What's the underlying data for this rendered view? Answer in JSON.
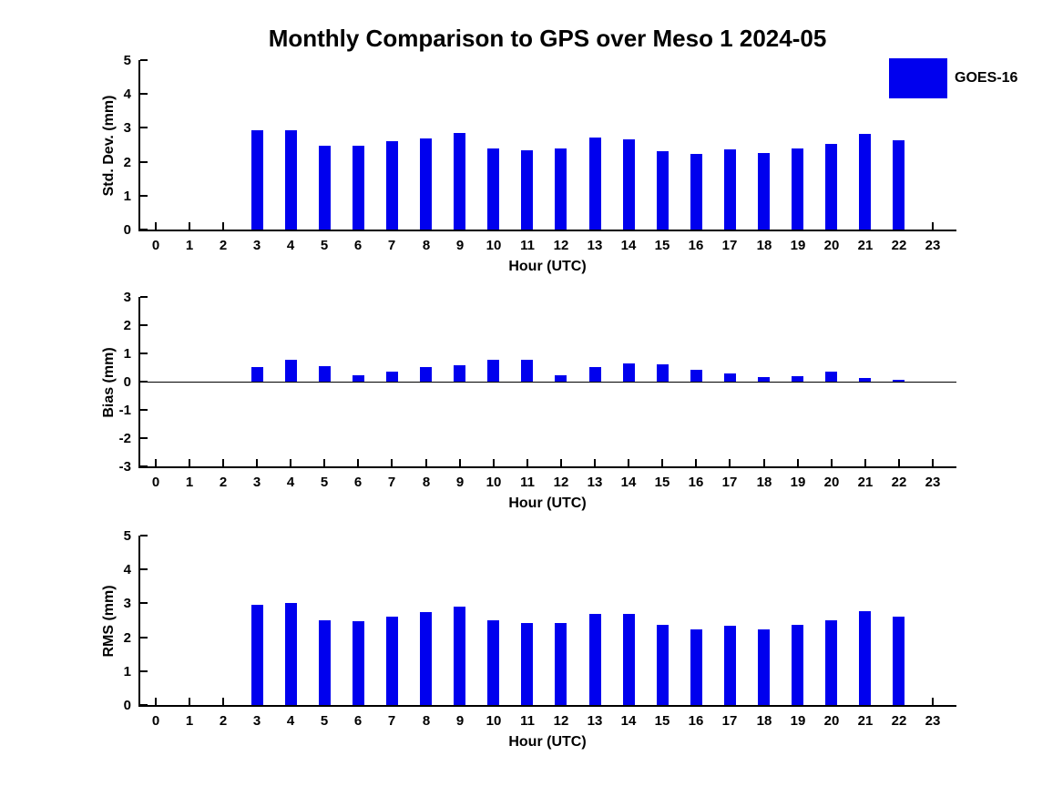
{
  "figure": {
    "title": "Monthly Comparison to GPS over Meso 1 2024-05",
    "legend": {
      "label": "GOES-16",
      "swatch_color": "#0000ee",
      "position": "top-right-outside"
    }
  },
  "chart_data": [
    {
      "type": "bar",
      "id": "std-dev",
      "title": "",
      "ylabel": "Std. Dev. (mm)",
      "xlabel": "Hour (UTC)",
      "ylim": [
        0,
        5
      ],
      "yticks": [
        0,
        1,
        2,
        3,
        4,
        5
      ],
      "xlim": [
        -0.45,
        23.7
      ],
      "xticks": [
        0,
        1,
        2,
        3,
        4,
        5,
        6,
        7,
        8,
        9,
        10,
        11,
        12,
        13,
        14,
        15,
        16,
        17,
        18,
        19,
        20,
        21,
        22,
        23
      ],
      "zero_line": false,
      "grid": false,
      "bar_color": "#0000ee",
      "series": [
        {
          "name": "GOES-16",
          "x": [
            3,
            4,
            5,
            6,
            7,
            8,
            9,
            10,
            11,
            12,
            13,
            14,
            15,
            16,
            17,
            18,
            19,
            20,
            21,
            22
          ],
          "values": [
            2.93,
            2.93,
            2.47,
            2.47,
            2.6,
            2.7,
            2.85,
            2.38,
            2.33,
            2.4,
            2.71,
            2.66,
            2.31,
            2.23,
            2.36,
            2.26,
            2.4,
            2.53,
            2.81,
            2.63
          ]
        }
      ]
    },
    {
      "type": "bar",
      "id": "bias",
      "title": "",
      "ylabel": "Bias (mm)",
      "xlabel": "Hour (UTC)",
      "ylim": [
        -3,
        3
      ],
      "yticks": [
        3,
        2,
        1,
        0,
        -1,
        -2,
        -3
      ],
      "xlim": [
        -0.45,
        23.7
      ],
      "xticks": [
        0,
        1,
        2,
        3,
        4,
        5,
        6,
        7,
        8,
        9,
        10,
        11,
        12,
        13,
        14,
        15,
        16,
        17,
        18,
        19,
        20,
        21,
        22,
        23
      ],
      "zero_line": true,
      "grid": false,
      "bar_color": "#0000ee",
      "series": [
        {
          "name": "GOES-16",
          "x": [
            3,
            4,
            5,
            6,
            7,
            8,
            9,
            10,
            11,
            12,
            13,
            14,
            15,
            16,
            17,
            18,
            19,
            20,
            21,
            22
          ],
          "values": [
            0.51,
            0.76,
            0.54,
            0.22,
            0.34,
            0.53,
            0.57,
            0.79,
            0.76,
            0.22,
            0.53,
            0.65,
            0.6,
            0.41,
            0.3,
            0.16,
            0.18,
            0.37,
            0.12,
            0.05
          ]
        }
      ]
    },
    {
      "type": "bar",
      "id": "rms",
      "title": "",
      "ylabel": "RMS (mm)",
      "xlabel": "Hour (UTC)",
      "ylim": [
        0,
        5
      ],
      "yticks": [
        0,
        1,
        2,
        3,
        4,
        5
      ],
      "xlim": [
        -0.45,
        23.7
      ],
      "xticks": [
        0,
        1,
        2,
        3,
        4,
        5,
        6,
        7,
        8,
        9,
        10,
        11,
        12,
        13,
        14,
        15,
        16,
        17,
        18,
        19,
        20,
        21,
        22,
        23
      ],
      "zero_line": false,
      "grid": false,
      "bar_color": "#0000ee",
      "series": [
        {
          "name": "GOES-16",
          "x": [
            3,
            4,
            5,
            6,
            7,
            8,
            9,
            10,
            11,
            12,
            13,
            14,
            15,
            16,
            17,
            18,
            19,
            20,
            21,
            22
          ],
          "values": [
            2.97,
            3.02,
            2.5,
            2.47,
            2.61,
            2.73,
            2.89,
            2.5,
            2.42,
            2.42,
            2.7,
            2.68,
            2.36,
            2.23,
            2.33,
            2.22,
            2.36,
            2.51,
            2.78,
            2.6
          ]
        }
      ]
    }
  ]
}
